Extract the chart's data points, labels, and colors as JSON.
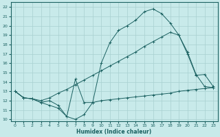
{
  "xlabel": "Humidex (Indice chaleur)",
  "bg_color": "#c8eaea",
  "line_color": "#1a6060",
  "grid_color": "#a8d0d0",
  "xlim": [
    -0.5,
    23.5
  ],
  "ylim": [
    9.8,
    22.5
  ],
  "xticks": [
    0,
    1,
    2,
    3,
    4,
    5,
    6,
    7,
    8,
    9,
    10,
    11,
    12,
    13,
    14,
    15,
    16,
    17,
    18,
    19,
    20,
    21,
    22,
    23
  ],
  "yticks": [
    10,
    11,
    12,
    13,
    14,
    15,
    16,
    17,
    18,
    19,
    20,
    21,
    22
  ],
  "series1_x": [
    0,
    1,
    2,
    3,
    4,
    5,
    6,
    7,
    8,
    9,
    10,
    11,
    12,
    13,
    14,
    15,
    16,
    17,
    18,
    19,
    20,
    21,
    22,
    23
  ],
  "series1_y": [
    13.0,
    12.3,
    12.2,
    11.8,
    11.5,
    11.2,
    10.3,
    10.0,
    10.5,
    11.8,
    12.0,
    12.1,
    12.2,
    12.3,
    12.4,
    12.5,
    12.6,
    12.7,
    12.8,
    13.0,
    13.1,
    13.2,
    13.3,
    13.4
  ],
  "series2_x": [
    0,
    1,
    2,
    3,
    4,
    5,
    6,
    7,
    8,
    9,
    10,
    11,
    12,
    13,
    14,
    15,
    16,
    17,
    18,
    19,
    20,
    21,
    22,
    23
  ],
  "series2_y": [
    13.0,
    12.3,
    12.2,
    12.0,
    12.3,
    12.8,
    13.2,
    13.7,
    14.2,
    14.7,
    15.2,
    15.7,
    16.2,
    16.7,
    17.2,
    17.8,
    18.3,
    18.8,
    19.3,
    19.0,
    17.2,
    14.8,
    13.5,
    13.4
  ],
  "series3_x": [
    0,
    1,
    2,
    3,
    4,
    5,
    6,
    7,
    8,
    9,
    10,
    11,
    12,
    13,
    14,
    15,
    16,
    17,
    18,
    19,
    20,
    21,
    22,
    23
  ],
  "series3_y": [
    13.0,
    12.3,
    12.2,
    11.8,
    12.0,
    11.5,
    10.3,
    14.3,
    11.8,
    11.8,
    16.0,
    18.2,
    19.5,
    20.0,
    20.6,
    21.5,
    21.8,
    21.3,
    20.3,
    19.0,
    17.0,
    14.7,
    14.8,
    13.5
  ]
}
